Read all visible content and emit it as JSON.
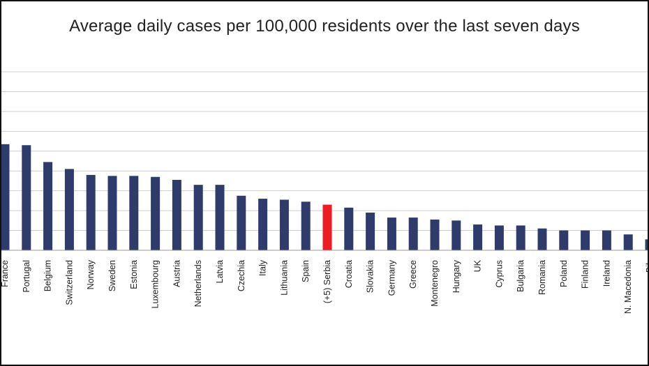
{
  "chart_data": {
    "type": "bar",
    "title": "Average daily cases per 100,000 residents over the last seven days",
    "xlabel": "",
    "ylabel": "",
    "ylim": [
      0,
      90
    ],
    "grid": true,
    "categories": [
      "France",
      "Portugal",
      "Belgium",
      "Switzerland",
      "Norway",
      "Sweden",
      "Estonia",
      "Luxembourg",
      "Austria",
      "Netherlands",
      "Latvia",
      "Czechia",
      "Italy",
      "Lithuania",
      "Spain",
      "(+5) Serbia",
      "Croatia",
      "Slovakia",
      "Germany",
      "Greece",
      "Montenegro",
      "Hungary",
      "UK",
      "Cyprus",
      "Bulgaria",
      "Romania",
      "Poland",
      "Finland",
      "Ireland",
      "N. Macedonia",
      "Bih"
    ],
    "values": [
      53.5,
      53,
      44.5,
      41,
      38,
      37.5,
      37.5,
      37,
      35.5,
      33,
      33,
      27.5,
      26,
      25.5,
      24.5,
      23,
      21.5,
      19,
      16.5,
      16.5,
      15.5,
      15,
      13,
      12.5,
      12.5,
      11,
      10,
      10,
      10,
      8,
      5.5
    ],
    "highlight": "(+5) Serbia",
    "colors": {
      "bar": "#2f3b6b",
      "highlight": "#ee1c25"
    }
  }
}
